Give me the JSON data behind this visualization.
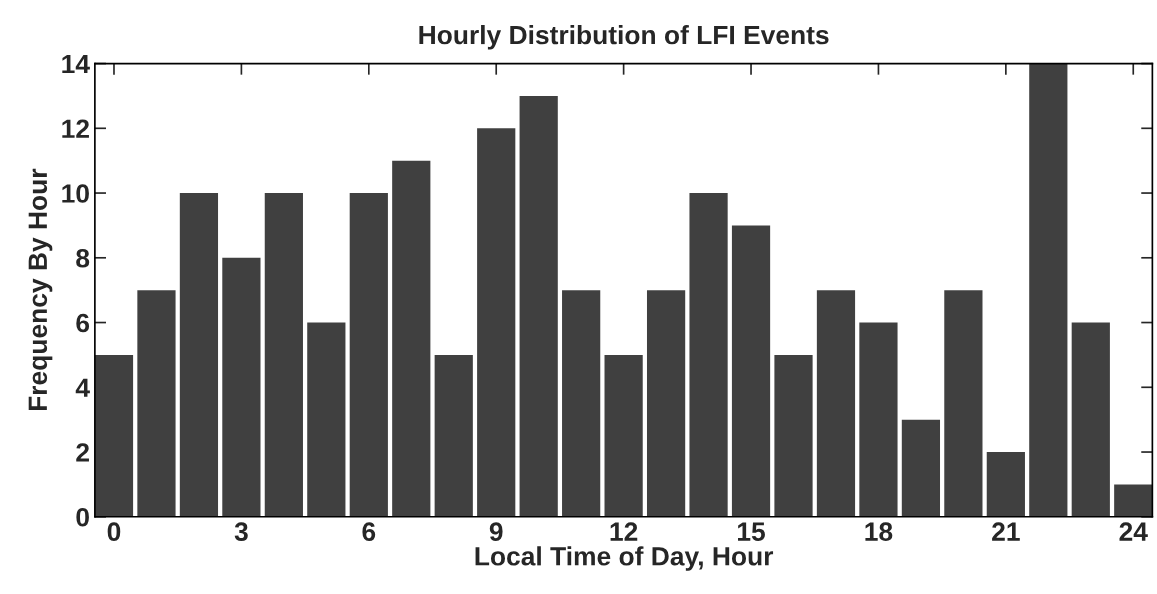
{
  "chart_data": {
    "type": "bar",
    "title": "Hourly Distribution of LFI Events",
    "xlabel": "Local Time of Day, Hour",
    "ylabel": "Frequency By Hour",
    "x": [
      0,
      1,
      2,
      3,
      4,
      5,
      6,
      7,
      8,
      9,
      10,
      11,
      12,
      13,
      14,
      15,
      16,
      17,
      18,
      19,
      20,
      21,
      22,
      23,
      24
    ],
    "series": [
      {
        "color": "#404040",
        "values": [
          5,
          7,
          10,
          8,
          10,
          6,
          10,
          11,
          5,
          12,
          13,
          7,
          5,
          7,
          10,
          9,
          5,
          7,
          6,
          3,
          7,
          2,
          14,
          6,
          1
        ]
      }
    ],
    "xlim": [
      -0.45,
      24.45
    ],
    "ylim": [
      0,
      14
    ],
    "xticks": [
      0,
      3,
      6,
      9,
      12,
      15,
      18,
      21,
      24
    ],
    "yticks": [
      0,
      2,
      4,
      6,
      8,
      10,
      12,
      14
    ],
    "grid": false,
    "legend": false
  }
}
